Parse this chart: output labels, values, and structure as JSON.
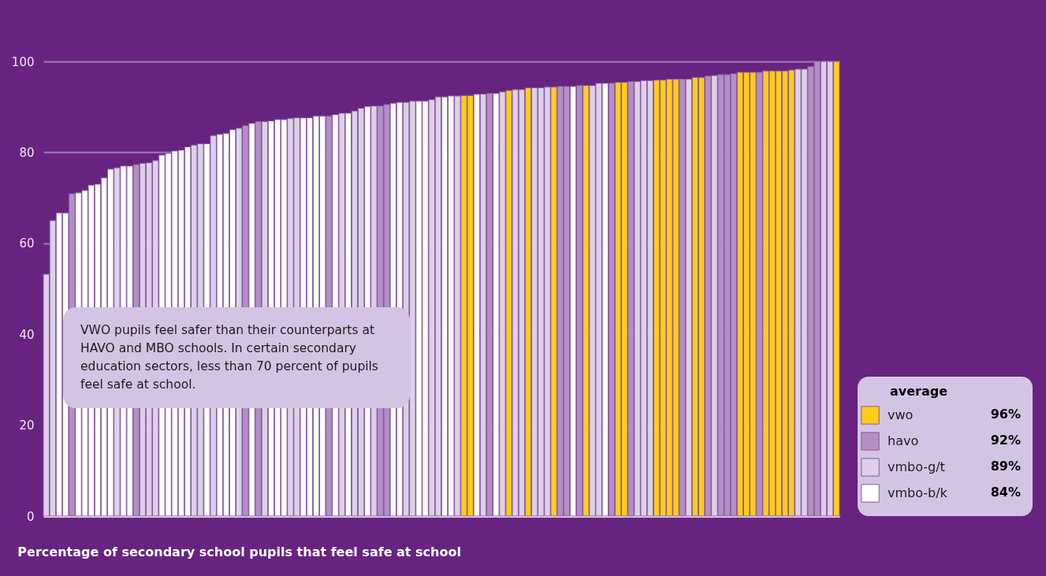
{
  "chart_data": {
    "type": "bar",
    "title": "Percentage of secondary school pupils that feel safe at school",
    "legend_title": "average",
    "annotations": [
      "VWO pupils feel safer than their counterparts at HAVO and MBO schools. In certain secondary education sectors, less than 70 percent of pupils feel safe at school.",
      "96%",
      "92%",
      "89%",
      "84%"
    ],
    "categories": [
      null,
      null,
      null,
      null,
      null,
      null,
      null,
      null,
      null,
      null,
      null,
      null,
      null,
      null,
      null,
      null,
      null,
      null,
      null,
      null,
      null,
      null,
      null,
      null,
      null,
      null,
      null,
      null,
      null,
      null,
      null,
      null,
      null,
      null,
      null,
      null,
      null,
      null,
      null,
      null,
      null,
      null,
      null,
      null,
      null,
      null,
      null,
      null,
      null,
      null,
      null,
      null,
      null,
      null,
      null,
      null,
      null,
      null,
      null,
      null,
      null,
      null,
      null,
      null,
      null,
      null,
      null,
      null,
      null,
      null,
      null,
      null,
      null,
      null,
      null,
      null,
      null,
      null,
      null,
      null,
      null,
      null,
      null,
      null,
      null,
      null,
      null,
      null,
      null,
      null,
      null,
      null,
      null,
      null,
      null,
      null,
      null,
      null,
      null,
      null,
      null,
      null,
      null,
      null,
      null,
      null,
      null,
      null,
      null,
      null,
      null,
      null,
      null,
      null,
      null,
      null,
      null,
      null,
      null,
      null,
      null,
      null,
      null,
      null
    ],
    "ylim": [
      0,
      100
    ],
    "yticks": [
      0,
      20,
      40,
      60,
      80,
      100
    ],
    "grid": "y",
    "legend": "right",
    "tick_labels": "y",
    "series": [
      {
        "name": "vwo",
        "color": "#ffcc1a",
        "values": [
          null,
          null,
          null,
          null,
          null,
          null,
          null,
          null,
          null,
          null,
          null,
          null,
          null,
          null,
          null,
          null,
          null,
          null,
          null,
          null,
          null,
          null,
          null,
          null,
          null,
          null,
          null,
          null,
          null,
          null,
          null,
          null,
          null,
          null,
          null,
          null,
          null,
          null,
          null,
          null,
          null,
          null,
          null,
          null,
          null,
          null,
          null,
          null,
          null,
          null,
          null,
          null,
          null,
          null,
          null,
          null,
          null,
          null,
          null,
          null,
          null,
          null,
          null,
          null,
          null,
          92.5,
          92.5,
          null,
          null,
          null,
          null,
          null,
          93.6,
          null,
          null,
          94.2,
          null,
          null,
          null,
          94.4,
          null,
          null,
          null,
          null,
          94.7,
          null,
          null,
          null,
          null,
          95.4,
          95.4,
          null,
          null,
          null,
          null,
          95.9,
          95.9,
          96.1,
          96.1,
          null,
          null,
          96.5,
          96.5,
          null,
          null,
          null,
          null,
          null,
          97.6,
          97.6,
          97.6,
          null,
          97.9,
          97.9,
          97.9,
          97.9,
          98.1,
          null,
          null,
          null,
          null,
          null,
          null,
          100
        ]
      },
      {
        "name": "havo",
        "color": "#b38fc4",
        "values": [
          null,
          null,
          null,
          null,
          70.9,
          null,
          null,
          null,
          null,
          null,
          null,
          null,
          null,
          null,
          77.3,
          null,
          null,
          null,
          null,
          null,
          null,
          null,
          null,
          null,
          null,
          null,
          null,
          null,
          null,
          null,
          null,
          85.9,
          null,
          86.8,
          null,
          null,
          null,
          null,
          null,
          null,
          null,
          null,
          null,
          null,
          88.0,
          null,
          null,
          null,
          null,
          null,
          null,
          null,
          90.2,
          90.5,
          null,
          null,
          null,
          null,
          null,
          null,
          null,
          null,
          null,
          null,
          null,
          null,
          null,
          null,
          null,
          93.0,
          null,
          null,
          null,
          null,
          null,
          null,
          null,
          null,
          null,
          null,
          94.5,
          94.5,
          null,
          94.7,
          null,
          null,
          null,
          null,
          95.2,
          null,
          null,
          95.6,
          null,
          null,
          null,
          null,
          null,
          null,
          null,
          96.1,
          null,
          null,
          null,
          96.8,
          null,
          97.1,
          97.1,
          97.3,
          null,
          null,
          null,
          97.6,
          null,
          null,
          null,
          null,
          null,
          null,
          null,
          98.9,
          100,
          null,
          null,
          null
        ]
      },
      {
        "name": "vmbo-g/t",
        "color": "#ddd0e8",
        "values": [
          53.2,
          65.0,
          null,
          null,
          null,
          null,
          null,
          null,
          null,
          null,
          null,
          76.6,
          null,
          null,
          null,
          77.6,
          77.7,
          78.2,
          null,
          null,
          null,
          null,
          null,
          81.6,
          81.9,
          null,
          83.7,
          null,
          null,
          null,
          85.3,
          null,
          null,
          null,
          86.8,
          null,
          null,
          null,
          87.5,
          87.6,
          null,
          null,
          null,
          null,
          null,
          null,
          88.6,
          null,
          89.1,
          89.7,
          null,
          90.2,
          null,
          null,
          null,
          null,
          91.0,
          91.3,
          null,
          null,
          91.6,
          92.2,
          null,
          null,
          92.4,
          null,
          null,
          null,
          92.8,
          null,
          null,
          93.3,
          null,
          93.8,
          93.8,
          null,
          94.2,
          94.2,
          94.4,
          null,
          null,
          null,
          null,
          null,
          null,
          94.7,
          95.2,
          null,
          null,
          null,
          null,
          null,
          95.6,
          95.8,
          95.8,
          null,
          null,
          null,
          null,
          null,
          96.1,
          null,
          null,
          null,
          96.9,
          null,
          null,
          null,
          null,
          null,
          null,
          null,
          null,
          null,
          null,
          null,
          null,
          98.3,
          98.3,
          null,
          null,
          100,
          100,
          null
        ]
      },
      {
        "name": "vmbo-b/k",
        "color": "#ffffff",
        "values": [
          null,
          null,
          66.7,
          66.7,
          null,
          71.1,
          71.6,
          72.8,
          73.0,
          74.4,
          76.3,
          null,
          77.0,
          77.0,
          null,
          null,
          null,
          null,
          79.4,
          79.8,
          80.3,
          80.5,
          81.2,
          null,
          null,
          81.9,
          null,
          84.0,
          84.2,
          85.0,
          null,
          null,
          86.4,
          null,
          null,
          86.9,
          87.2,
          87.2,
          null,
          null,
          87.6,
          87.6,
          88.0,
          88.0,
          null,
          88.3,
          null,
          88.6,
          null,
          null,
          90.1,
          null,
          null,
          null,
          90.8,
          91.0,
          null,
          null,
          91.3,
          91.3,
          null,
          null,
          92.2,
          92.4,
          null,
          null,
          null,
          92.8,
          null,
          null,
          93.0,
          null,
          null,
          null,
          null,
          null,
          null,
          null,
          null,
          null,
          null,
          null,
          94.5,
          null,
          null,
          null,
          null,
          95.2,
          null,
          null,
          null,
          null,
          null,
          null,
          null,
          null,
          null,
          null,
          null,
          null,
          null,
          null,
          null,
          null,
          null,
          null,
          null,
          null,
          null,
          null,
          null,
          null,
          null,
          null,
          null,
          null,
          null,
          null,
          null,
          null,
          null,
          null,
          null,
          null
        ]
      }
    ]
  }
}
